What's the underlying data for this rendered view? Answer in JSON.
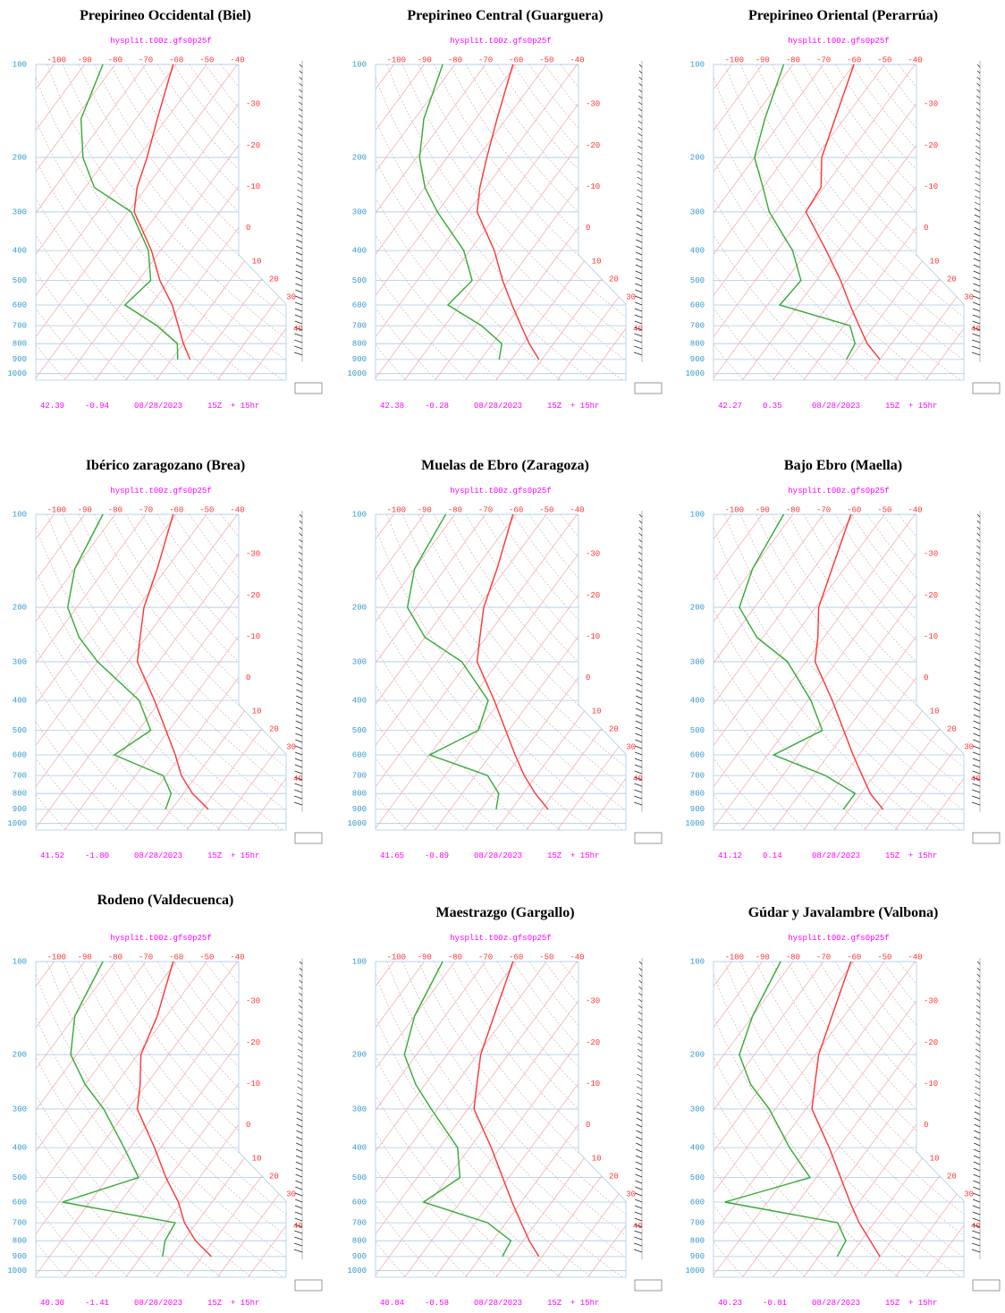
{
  "chart_data": [
    {
      "type": "skewt",
      "title": "Prepirineo Occidental (Biel)",
      "subtitle": "hysplit.t00z.gfs0p25f",
      "ylim": [
        100,
        1050
      ],
      "yticks": [
        100,
        200,
        300,
        400,
        500,
        600,
        700,
        800,
        900,
        1000
      ],
      "xlim": [
        -106,
        -24
      ],
      "xticks": [
        -100,
        -90,
        -80,
        -70,
        -60,
        -50,
        -40,
        -30,
        -20,
        -10,
        0,
        10,
        20,
        30,
        40
      ],
      "pressure": [
        100,
        150,
        200,
        250,
        300,
        400,
        500,
        600,
        700,
        800,
        900
      ],
      "series": [
        {
          "color": "#ff3333",
          "values": [
            -61,
            -53,
            -47,
            -43,
            -38,
            -23,
            -13,
            -3,
            4,
            10,
            16
          ]
        },
        {
          "color": "#33aa33",
          "values": [
            -84,
            -78,
            -68,
            -57,
            -39,
            -24,
            -16,
            -18.5,
            -3,
            8,
            12
          ]
        }
      ],
      "footer": [
        "42.39",
        "-0.94",
        "08/28/2023",
        "15Z",
        "+ 15hr"
      ]
    },
    {
      "type": "skewt",
      "title": "Prepirineo Central (Guarguera)",
      "subtitle": "hysplit.t00z.gfs0p25f",
      "ylim": [
        100,
        1050
      ],
      "yticks": [
        100,
        200,
        300,
        400,
        500,
        600,
        700,
        800,
        900,
        1000
      ],
      "xlim": [
        -106,
        -24
      ],
      "xticks": [
        -100,
        -90,
        -80,
        -70,
        -60,
        -50,
        -40,
        -30,
        -20,
        -10,
        0,
        10,
        20,
        30,
        40
      ],
      "pressure": [
        100,
        150,
        200,
        250,
        300,
        400,
        500,
        600,
        700,
        800,
        900
      ],
      "series": [
        {
          "color": "#ff3333",
          "values": [
            -61,
            -53,
            -47,
            -42,
            -37,
            -22,
            -12,
            -3,
            5,
            12,
            19
          ]
        },
        {
          "color": "#33aa33",
          "values": [
            -84,
            -77,
            -69,
            -60,
            -50,
            -32,
            -22,
            -24,
            -8,
            3,
            6
          ]
        }
      ],
      "footer": [
        "42.38",
        "-0.28",
        "08/28/2023",
        "15Z",
        "+ 15hr"
      ]
    },
    {
      "type": "skewt",
      "title": "Prepirineo Oriental (Perarrúa)",
      "subtitle": "hysplit.t00z.gfs0p25f",
      "ylim": [
        100,
        1050
      ],
      "yticks": [
        100,
        200,
        300,
        400,
        500,
        600,
        700,
        800,
        900,
        1000
      ],
      "xlim": [
        -106,
        -24
      ],
      "xticks": [
        -100,
        -90,
        -80,
        -70,
        -60,
        -50,
        -40,
        -30,
        -20,
        -10,
        0,
        10,
        20,
        30,
        40
      ],
      "pressure": [
        100,
        150,
        200,
        250,
        300,
        400,
        500,
        600,
        700,
        800,
        900
      ],
      "series": [
        {
          "color": "#ff3333",
          "values": [
            -60,
            -53,
            -48,
            -41,
            -40,
            -24,
            -12,
            -3,
            5,
            12,
            20
          ]
        },
        {
          "color": "#33aa33",
          "values": [
            -83,
            -76,
            -70,
            -60,
            -52,
            -35,
            -25,
            -26,
            2,
            8,
            9
          ]
        }
      ],
      "footer": [
        "42.27",
        "0.35",
        "08/28/2023",
        "15Z",
        "+ 15hr"
      ]
    },
    {
      "type": "skewt",
      "title": "Ibérico zaragozano (Brea)",
      "subtitle": "hysplit.t00z.gfs0p25f",
      "ylim": [
        100,
        1050
      ],
      "yticks": [
        100,
        200,
        300,
        400,
        500,
        600,
        700,
        800,
        900,
        1000
      ],
      "xlim": [
        -106,
        -24
      ],
      "xticks": [
        -100,
        -90,
        -80,
        -70,
        -60,
        -50,
        -40,
        -30,
        -20,
        -10,
        0,
        10,
        20,
        30,
        40
      ],
      "pressure": [
        100,
        150,
        200,
        250,
        300,
        400,
        500,
        600,
        700,
        800,
        900
      ],
      "series": [
        {
          "color": "#ff3333",
          "values": [
            -61,
            -53,
            -48,
            -42,
            -37,
            -22,
            -11,
            -2,
            5,
            13,
            22
          ]
        },
        {
          "color": "#33aa33",
          "values": [
            -84,
            -80,
            -73,
            -62,
            -50,
            -27,
            -16,
            -22,
            -1,
            6,
            8
          ]
        }
      ],
      "footer": [
        "41.52",
        "-1.80",
        "08/28/2023",
        "15Z",
        "+ 15hr"
      ]
    },
    {
      "type": "skewt",
      "title": "Muelas de Ebro (Zaragoza)",
      "subtitle": "hysplit.t00z.gfs0p25f",
      "ylim": [
        100,
        1050
      ],
      "yticks": [
        100,
        200,
        300,
        400,
        500,
        600,
        700,
        800,
        900,
        1000
      ],
      "xlim": [
        -106,
        -24
      ],
      "xticks": [
        -100,
        -90,
        -80,
        -70,
        -60,
        -50,
        -40,
        -30,
        -20,
        -10,
        0,
        10,
        20,
        30,
        40
      ],
      "pressure": [
        100,
        150,
        200,
        250,
        300,
        400,
        500,
        600,
        700,
        800,
        900
      ],
      "series": [
        {
          "color": "#ff3333",
          "values": [
            -61,
            -53,
            -48,
            -42,
            -37,
            -22,
            -11,
            -2,
            6,
            14,
            22
          ]
        },
        {
          "color": "#33aa33",
          "values": [
            -83,
            -80,
            -73,
            -60,
            -42,
            -24,
            -20,
            -30,
            -6,
            2,
            5
          ]
        }
      ],
      "footer": [
        "41.65",
        "-0.89",
        "08/28/2023",
        "15Z",
        "+ 15hr"
      ]
    },
    {
      "type": "skewt",
      "title": "Bajo Ebro (Maella)",
      "subtitle": "hysplit.t00z.gfs0p25f",
      "ylim": [
        100,
        1050
      ],
      "yticks": [
        100,
        200,
        300,
        400,
        500,
        600,
        700,
        800,
        900,
        1000
      ],
      "xlim": [
        -106,
        -24
      ],
      "xticks": [
        -100,
        -90,
        -80,
        -70,
        -60,
        -50,
        -40,
        -30,
        -20,
        -10,
        0,
        10,
        20,
        30,
        40
      ],
      "pressure": [
        100,
        150,
        200,
        250,
        300,
        400,
        500,
        600,
        700,
        800,
        900
      ],
      "series": [
        {
          "color": "#ff3333",
          "values": [
            -61,
            -54,
            -49,
            -42,
            -37,
            -22,
            -11,
            -2,
            6,
            13,
            21
          ]
        },
        {
          "color": "#33aa33",
          "values": [
            -83,
            -80,
            -75,
            -62,
            -46,
            -29,
            -18,
            -28,
            -6,
            8,
            8
          ]
        }
      ],
      "footer": [
        "41.12",
        "0.14",
        "08/28/2023",
        "15Z",
        "+ 15hr"
      ]
    },
    {
      "type": "skewt",
      "title": "Rodeno (Valdecuenca)",
      "subtitle": "hysplit.t00z.gfs0p25f",
      "ylim": [
        100,
        1050
      ],
      "yticks": [
        100,
        200,
        300,
        400,
        500,
        600,
        700,
        800,
        900,
        1000
      ],
      "xlim": [
        -106,
        -24
      ],
      "xticks": [
        -100,
        -90,
        -80,
        -70,
        -60,
        -50,
        -40,
        -30,
        -20,
        -10,
        0,
        10,
        20,
        30,
        40
      ],
      "pressure": [
        100,
        150,
        200,
        250,
        300,
        400,
        500,
        600,
        700,
        800,
        900
      ],
      "series": [
        {
          "color": "#ff3333",
          "values": [
            -61,
            -53,
            -49,
            -42,
            -37,
            -22,
            -11,
            -1,
            6,
            14,
            23
          ]
        },
        {
          "color": "#33aa33",
          "values": [
            -84,
            -80,
            -72,
            -60,
            -48,
            -32,
            -20,
            -39,
            3,
            4,
            7
          ]
        }
      ],
      "footer": [
        "40.30",
        "-1.41",
        "08/28/2023",
        "15Z",
        "+ 15hr"
      ]
    },
    {
      "type": "skewt",
      "title": "Maestrazgo (Gargallo)",
      "subtitle": "hysplit.t00z.gfs0p25f",
      "ylim": [
        100,
        1050
      ],
      "yticks": [
        100,
        200,
        300,
        400,
        500,
        600,
        700,
        800,
        900,
        1000
      ],
      "xlim": [
        -106,
        -24
      ],
      "xticks": [
        -100,
        -90,
        -80,
        -70,
        -60,
        -50,
        -40,
        -30,
        -20,
        -10,
        0,
        10,
        20,
        30,
        40
      ],
      "pressure": [
        100,
        150,
        200,
        250,
        300,
        400,
        500,
        600,
        700,
        800,
        900
      ],
      "series": [
        {
          "color": "#ff3333",
          "values": [
            -61,
            -54,
            -49,
            -43,
            -38,
            -23,
            -12,
            -3,
            5,
            12,
            19
          ]
        },
        {
          "color": "#33aa33",
          "values": [
            -84,
            -80,
            -74,
            -63,
            -52,
            -34,
            -26,
            -32,
            -6,
            6,
            7
          ]
        }
      ],
      "footer": [
        "40.84",
        "-0.58",
        "08/28/2023",
        "15Z",
        "+ 15hr"
      ]
    },
    {
      "type": "skewt",
      "title": "Gúdar y Javalambre (Valbona)",
      "subtitle": "hysplit.t00z.gfs0p25f",
      "ylim": [
        100,
        1050
      ],
      "yticks": [
        100,
        200,
        300,
        400,
        500,
        600,
        700,
        800,
        900,
        1000
      ],
      "xlim": [
        -106,
        -24
      ],
      "xticks": [
        -100,
        -90,
        -80,
        -70,
        -60,
        -50,
        -40,
        -30,
        -20,
        -10,
        0,
        10,
        20,
        30,
        40
      ],
      "pressure": [
        100,
        150,
        200,
        250,
        300,
        400,
        500,
        600,
        700,
        800,
        900
      ],
      "series": [
        {
          "color": "#ff3333",
          "values": [
            -61,
            -54,
            -49,
            -43,
            -38,
            -23,
            -12,
            -3,
            5,
            13,
            20
          ]
        },
        {
          "color": "#33aa33",
          "values": [
            -84,
            -80,
            -75,
            -64,
            -52,
            -36,
            -22,
            -44,
            -2,
            5,
            6
          ]
        }
      ],
      "footer": [
        "40.23",
        "-0.81",
        "08/28/2023",
        "15Z",
        "+ 15hr"
      ]
    }
  ]
}
